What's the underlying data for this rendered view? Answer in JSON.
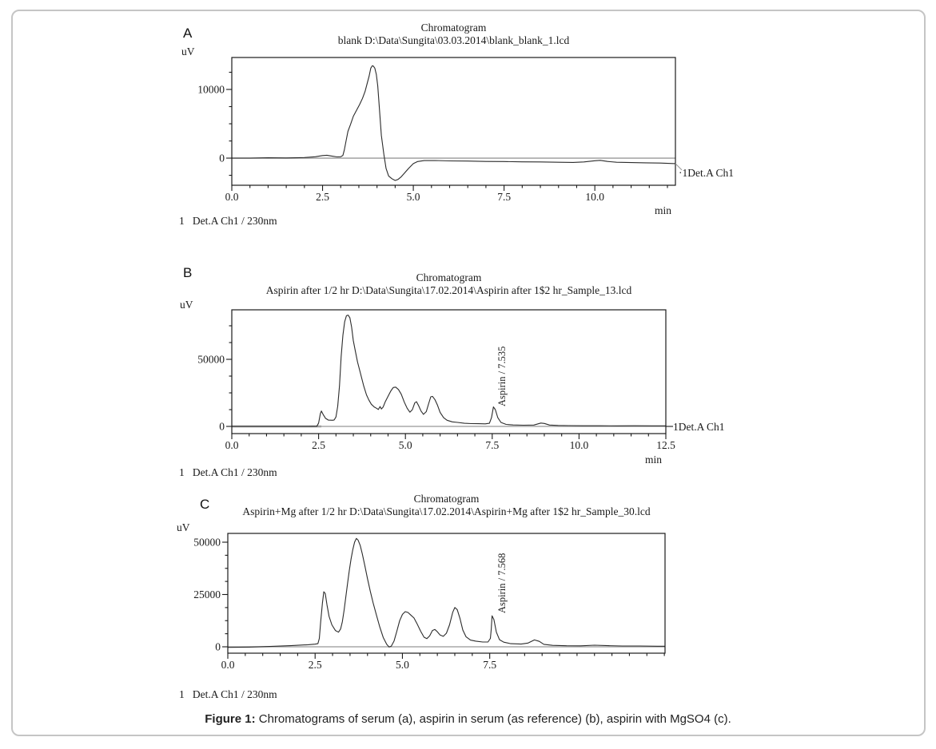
{
  "figure": {
    "label": "Figure 1:",
    "text": " Chromatograms of serum (a), aspirin in serum (as reference) (b), aspirin with MgSO4 (c)."
  },
  "chart_data": [
    {
      "type": "line",
      "panel": "A",
      "title": "Chromatogram",
      "subtitle": "blank D:\\Data\\Sungita\\03.03.2014\\blank_blank_1.lcd",
      "ylabel": "uV",
      "xlabel": "min",
      "detector_label": "·1Det.A Ch1",
      "channel_label": "1   Det.A Ch1 / 230nm",
      "xlim": [
        0,
        12.22
      ],
      "ylim": [
        -3950,
        14650
      ],
      "x_major": [
        0,
        2.5,
        5,
        7.5,
        10
      ],
      "x_tick_labels": [
        "0.0",
        "2.5",
        "5.0",
        "7.5",
        "10.0"
      ],
      "x_minor_step": 0.5,
      "y_major": [
        0,
        10000
      ],
      "y_tick_labels": [
        "0",
        "10000"
      ],
      "y_minor": [
        -2500,
        2500,
        5000,
        7500,
        12500
      ],
      "series": [
        {
          "name": "Det.A Ch1",
          "points": [
            [
              0,
              0
            ],
            [
              0.5,
              0
            ],
            [
              1.0,
              50
            ],
            [
              1.5,
              30
            ],
            [
              2.0,
              80
            ],
            [
              2.3,
              200
            ],
            [
              2.5,
              380
            ],
            [
              2.62,
              420
            ],
            [
              2.75,
              300
            ],
            [
              2.9,
              180
            ],
            [
              3.0,
              200
            ],
            [
              3.06,
              400
            ],
            [
              3.1,
              1200
            ],
            [
              3.15,
              2600
            ],
            [
              3.2,
              3900
            ],
            [
              3.27,
              4900
            ],
            [
              3.35,
              6100
            ],
            [
              3.45,
              7100
            ],
            [
              3.52,
              7800
            ],
            [
              3.6,
              8700
            ],
            [
              3.67,
              9700
            ],
            [
              3.73,
              10900
            ],
            [
              3.78,
              11900
            ],
            [
              3.83,
              13100
            ],
            [
              3.87,
              13450
            ],
            [
              3.9,
              13400
            ],
            [
              3.94,
              13100
            ],
            [
              3.98,
              12200
            ],
            [
              4.02,
              10500
            ],
            [
              4.07,
              7000
            ],
            [
              4.12,
              3300
            ],
            [
              4.19,
              500
            ],
            [
              4.25,
              -1500
            ],
            [
              4.32,
              -2600
            ],
            [
              4.41,
              -3000
            ],
            [
              4.5,
              -3250
            ],
            [
              4.58,
              -3100
            ],
            [
              4.66,
              -2750
            ],
            [
              4.77,
              -2100
            ],
            [
              4.87,
              -1500
            ],
            [
              5.0,
              -800
            ],
            [
              5.12,
              -500
            ],
            [
              5.3,
              -360
            ],
            [
              5.6,
              -350
            ],
            [
              6.0,
              -400
            ],
            [
              6.5,
              -430
            ],
            [
              7.0,
              -480
            ],
            [
              7.5,
              -500
            ],
            [
              8.0,
              -540
            ],
            [
              8.5,
              -560
            ],
            [
              9.0,
              -600
            ],
            [
              9.4,
              -620
            ],
            [
              9.7,
              -550
            ],
            [
              10.0,
              -380
            ],
            [
              10.15,
              -320
            ],
            [
              10.35,
              -480
            ],
            [
              10.6,
              -600
            ],
            [
              11.0,
              -650
            ],
            [
              11.4,
              -680
            ],
            [
              11.8,
              -720
            ],
            [
              12.22,
              -800
            ]
          ]
        }
      ]
    },
    {
      "type": "line",
      "panel": "B",
      "title": "Chromatogram",
      "subtitle": "Aspirin after 1/2 hr D:\\Data\\Sungita\\17.02.2014\\Aspirin after 1$2 hr_Sample_13.lcd",
      "ylabel": "uV",
      "xlabel": "min",
      "detector_label": "1Det.A Ch1",
      "channel_label": "1   Det.A Ch1 / 230nm",
      "peak": {
        "label": "Aspirin / 7.535",
        "x": 7.535
      },
      "xlim": [
        0,
        12.5
      ],
      "ylim": [
        -5355,
        86900
      ],
      "x_major": [
        0,
        2.5,
        5,
        7.5,
        10,
        12.5
      ],
      "x_tick_labels": [
        "0.0",
        "2.5",
        "5.0",
        "7.5",
        "10.0",
        "12.5"
      ],
      "x_minor_step": 0.5,
      "y_major": [
        0,
        50000
      ],
      "y_tick_labels": [
        "0",
        "50000"
      ],
      "y_minor": [
        12500,
        25000,
        37500,
        62500,
        75000
      ],
      "series": [
        {
          "name": "Det.A Ch1",
          "points": [
            [
              0,
              0
            ],
            [
              0.8,
              0
            ],
            [
              1.6,
              0
            ],
            [
              2.2,
              0
            ],
            [
              2.45,
              100
            ],
            [
              2.5,
              2500
            ],
            [
              2.55,
              9500
            ],
            [
              2.58,
              11500
            ],
            [
              2.63,
              9000
            ],
            [
              2.7,
              6000
            ],
            [
              2.78,
              4700
            ],
            [
              2.9,
              4600
            ],
            [
              2.95,
              4800
            ],
            [
              3.0,
              7000
            ],
            [
              3.05,
              15000
            ],
            [
              3.1,
              30000
            ],
            [
              3.15,
              52000
            ],
            [
              3.2,
              68000
            ],
            [
              3.25,
              78000
            ],
            [
              3.3,
              82500
            ],
            [
              3.35,
              83000
            ],
            [
              3.4,
              81000
            ],
            [
              3.45,
              74000
            ],
            [
              3.5,
              64000
            ],
            [
              3.56,
              56000
            ],
            [
              3.62,
              48000
            ],
            [
              3.68,
              42000
            ],
            [
              3.74,
              36000
            ],
            [
              3.8,
              30000
            ],
            [
              3.88,
              23500
            ],
            [
              3.95,
              19500
            ],
            [
              4.02,
              16500
            ],
            [
              4.1,
              14500
            ],
            [
              4.17,
              13500
            ],
            [
              4.22,
              12600
            ],
            [
              4.27,
              14800
            ],
            [
              4.31,
              13000
            ],
            [
              4.36,
              14500
            ],
            [
              4.42,
              18400
            ],
            [
              4.5,
              22500
            ],
            [
              4.58,
              26500
            ],
            [
              4.65,
              29000
            ],
            [
              4.72,
              29300
            ],
            [
              4.8,
              27500
            ],
            [
              4.88,
              24000
            ],
            [
              4.97,
              18000
            ],
            [
              5.05,
              13500
            ],
            [
              5.13,
              10600
            ],
            [
              5.2,
              12500
            ],
            [
              5.27,
              17500
            ],
            [
              5.32,
              18400
            ],
            [
              5.38,
              15500
            ],
            [
              5.45,
              11500
            ],
            [
              5.52,
              9000
            ],
            [
              5.6,
              11000
            ],
            [
              5.67,
              17000
            ],
            [
              5.73,
              22000
            ],
            [
              5.78,
              22400
            ],
            [
              5.85,
              20000
            ],
            [
              5.92,
              16000
            ],
            [
              6.0,
              10500
            ],
            [
              6.1,
              6500
            ],
            [
              6.2,
              4600
            ],
            [
              6.35,
              3400
            ],
            [
              6.5,
              3000
            ],
            [
              6.7,
              2300
            ],
            [
              6.9,
              2100
            ],
            [
              7.1,
              2000
            ],
            [
              7.3,
              1900
            ],
            [
              7.42,
              2300
            ],
            [
              7.48,
              6500
            ],
            [
              7.535,
              14500
            ],
            [
              7.59,
              12500
            ],
            [
              7.66,
              6500
            ],
            [
              7.75,
              3000
            ],
            [
              7.9,
              1500
            ],
            [
              8.1,
              1100
            ],
            [
              8.4,
              900
            ],
            [
              8.7,
              1000
            ],
            [
              8.9,
              2500
            ],
            [
              9.0,
              2200
            ],
            [
              9.15,
              1000
            ],
            [
              9.4,
              700
            ],
            [
              9.7,
              600
            ],
            [
              10.1,
              500
            ],
            [
              10.6,
              500
            ],
            [
              11.1,
              400
            ],
            [
              11.6,
              500
            ],
            [
              12.1,
              400
            ],
            [
              12.5,
              400
            ]
          ]
        }
      ]
    },
    {
      "type": "line",
      "panel": "C",
      "title": "Chromatogram",
      "subtitle": "Aspirin+Mg after 1/2 hr D:\\Data\\Sungita\\17.02.2014\\Aspirin+Mg after 1$2 hr_Sample_30.lcd",
      "ylabel": "uV",
      "xlabel": "",
      "channel_label": "1   Det.A Ch1 / 230nm",
      "peak": {
        "label": "Aspirin / 7.568",
        "x": 7.568
      },
      "xlim": [
        0,
        12.52
      ],
      "ylim": [
        -3050,
        54200
      ],
      "x_major": [
        0,
        2.5,
        5,
        7.5
      ],
      "x_tick_labels": [
        "0.0",
        "2.5",
        "5.0",
        "7.5"
      ],
      "x_minor_step": 0.5,
      "y_major": [
        0,
        25000,
        50000
      ],
      "y_tick_labels": [
        "0",
        "25000",
        "50000"
      ],
      "y_minor": [
        6250,
        12500,
        18750,
        31250,
        37500,
        43750
      ],
      "series": [
        {
          "name": "Det.A Ch1",
          "points": [
            [
              0,
              -250
            ],
            [
              0.6,
              -150
            ],
            [
              1.2,
              150
            ],
            [
              1.8,
              550
            ],
            [
              2.3,
              1000
            ],
            [
              2.5,
              1250
            ],
            [
              2.58,
              1500
            ],
            [
              2.62,
              4000
            ],
            [
              2.66,
              12000
            ],
            [
              2.71,
              21000
            ],
            [
              2.75,
              26300
            ],
            [
              2.79,
              25500
            ],
            [
              2.84,
              20000
            ],
            [
              2.9,
              14500
            ],
            [
              2.98,
              10500
            ],
            [
              3.08,
              7800
            ],
            [
              3.17,
              7000
            ],
            [
              3.23,
              8500
            ],
            [
              3.28,
              12000
            ],
            [
              3.33,
              17500
            ],
            [
              3.38,
              24000
            ],
            [
              3.43,
              30500
            ],
            [
              3.48,
              36500
            ],
            [
              3.53,
              42000
            ],
            [
              3.58,
              46500
            ],
            [
              3.63,
              50000
            ],
            [
              3.68,
              51800
            ],
            [
              3.73,
              51000
            ],
            [
              3.79,
              48500
            ],
            [
              3.85,
              44500
            ],
            [
              3.92,
              39000
            ],
            [
              4.0,
              32500
            ],
            [
              4.08,
              26500
            ],
            [
              4.16,
              21000
            ],
            [
              4.25,
              15500
            ],
            [
              4.35,
              9500
            ],
            [
              4.45,
              4500
            ],
            [
              4.55,
              1200
            ],
            [
              4.62,
              -100
            ],
            [
              4.68,
              300
            ],
            [
              4.76,
              2800
            ],
            [
              4.84,
              7500
            ],
            [
              4.92,
              12500
            ],
            [
              5.0,
              15500
            ],
            [
              5.08,
              16800
            ],
            [
              5.16,
              16400
            ],
            [
              5.25,
              15000
            ],
            [
              5.33,
              13800
            ],
            [
              5.42,
              11000
            ],
            [
              5.52,
              7500
            ],
            [
              5.62,
              4600
            ],
            [
              5.7,
              3900
            ],
            [
              5.78,
              5200
            ],
            [
              5.86,
              7800
            ],
            [
              5.93,
              8300
            ],
            [
              6.0,
              7200
            ],
            [
              6.08,
              5600
            ],
            [
              6.17,
              5000
            ],
            [
              6.26,
              6500
            ],
            [
              6.35,
              10500
            ],
            [
              6.44,
              16500
            ],
            [
              6.5,
              18800
            ],
            [
              6.57,
              17800
            ],
            [
              6.65,
              13500
            ],
            [
              6.73,
              8000
            ],
            [
              6.82,
              4800
            ],
            [
              6.95,
              3200
            ],
            [
              7.1,
              2700
            ],
            [
              7.3,
              2300
            ],
            [
              7.45,
              2300
            ],
            [
              7.52,
              4000
            ],
            [
              7.545,
              8500
            ],
            [
              7.568,
              14800
            ],
            [
              7.62,
              13000
            ],
            [
              7.69,
              7000
            ],
            [
              7.78,
              3400
            ],
            [
              7.9,
              2200
            ],
            [
              8.1,
              1500
            ],
            [
              8.4,
              1300
            ],
            [
              8.6,
              1800
            ],
            [
              8.78,
              3300
            ],
            [
              8.92,
              2600
            ],
            [
              9.05,
              1200
            ],
            [
              9.3,
              700
            ],
            [
              9.7,
              500
            ],
            [
              10.1,
              450
            ],
            [
              10.5,
              750
            ],
            [
              10.9,
              550
            ],
            [
              11.3,
              380
            ],
            [
              11.8,
              380
            ],
            [
              12.3,
              280
            ],
            [
              12.52,
              280
            ]
          ]
        }
      ]
    }
  ]
}
